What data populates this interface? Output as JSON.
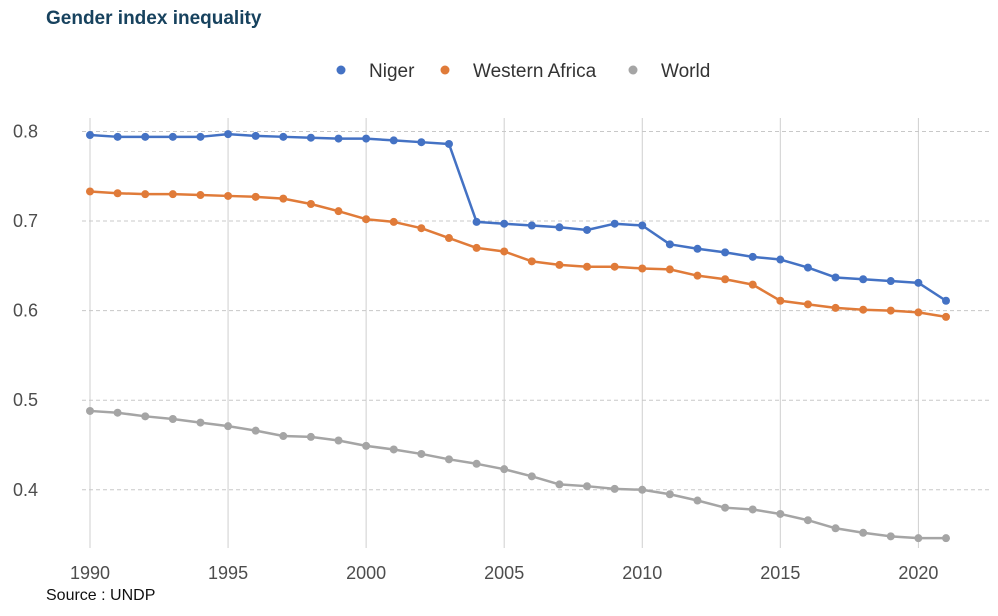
{
  "title": "Gender index inequality",
  "source": "Source : UNDP",
  "chart_data": {
    "type": "line",
    "title": "Gender index inequality",
    "xlabel": "",
    "ylabel": "",
    "xlim": [
      1990,
      2021
    ],
    "ylim": [
      0.335,
      0.815
    ],
    "x_ticks": [
      1990,
      1995,
      2000,
      2005,
      2010,
      2015,
      2020
    ],
    "y_ticks": [
      0.4,
      0.5,
      0.6,
      0.7,
      0.8
    ],
    "x_tick_labels": [
      "1990",
      "1995",
      "2000",
      "2005",
      "2010",
      "2015",
      "2020"
    ],
    "y_tick_labels": [
      "0.4",
      "0.5",
      "0.6",
      "0.7",
      "0.8"
    ],
    "legend_position": "top-center",
    "grid": true,
    "x": [
      1990,
      1991,
      1992,
      1993,
      1994,
      1995,
      1996,
      1997,
      1998,
      1999,
      2000,
      2001,
      2002,
      2003,
      2004,
      2005,
      2006,
      2007,
      2008,
      2009,
      2010,
      2011,
      2012,
      2013,
      2014,
      2015,
      2016,
      2017,
      2018,
      2019,
      2020,
      2021
    ],
    "series": [
      {
        "name": "Niger",
        "color": "#4472c4",
        "values": [
          0.796,
          0.794,
          0.794,
          0.794,
          0.794,
          0.797,
          0.795,
          0.794,
          0.793,
          0.792,
          0.792,
          0.79,
          0.788,
          0.786,
          0.699,
          0.697,
          0.695,
          0.693,
          0.69,
          0.697,
          0.695,
          0.674,
          0.669,
          0.665,
          0.66,
          0.657,
          0.648,
          0.637,
          0.635,
          0.633,
          0.631,
          0.611
        ]
      },
      {
        "name": "Western Africa",
        "color": "#e07b39",
        "values": [
          0.733,
          0.731,
          0.73,
          0.73,
          0.729,
          0.728,
          0.727,
          0.725,
          0.719,
          0.711,
          0.702,
          0.699,
          0.692,
          0.681,
          0.67,
          0.666,
          0.655,
          0.651,
          0.649,
          0.649,
          0.647,
          0.646,
          0.639,
          0.635,
          0.629,
          0.611,
          0.607,
          0.603,
          0.601,
          0.6,
          0.598,
          0.593
        ]
      },
      {
        "name": "World",
        "color": "#a5a5a5",
        "values": [
          0.488,
          0.486,
          0.482,
          0.479,
          0.475,
          0.471,
          0.466,
          0.46,
          0.459,
          0.455,
          0.449,
          0.445,
          0.44,
          0.434,
          0.429,
          0.423,
          0.415,
          0.406,
          0.404,
          0.401,
          0.4,
          0.395,
          0.388,
          0.38,
          0.378,
          0.373,
          0.366,
          0.357,
          0.352,
          0.348,
          0.346,
          0.346
        ]
      }
    ]
  }
}
